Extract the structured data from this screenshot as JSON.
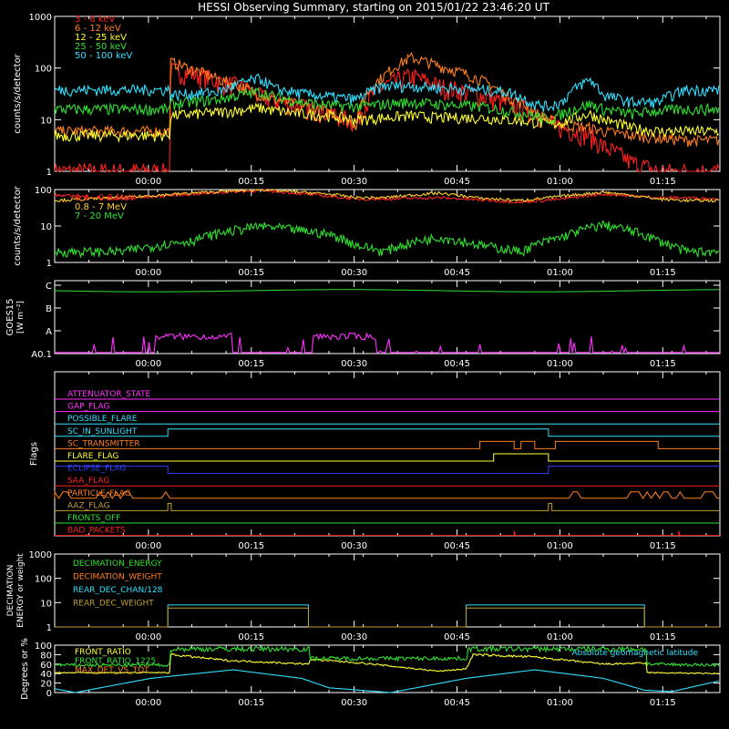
{
  "title": "HESSI Observing Summary, starting on 2015/01/22 23:46:20 UT",
  "time_ticks": [
    "00:00",
    "00:15",
    "00:30",
    "00:45",
    "01:00",
    "01:15"
  ],
  "panel1": {
    "ylabel": "counts/s/detector",
    "yticks": [
      "1",
      "10",
      "100",
      "1000"
    ],
    "legend": [
      {
        "label": "3 - 6 keV",
        "color": "#ff2020"
      },
      {
        "label": "6 - 12 keV",
        "color": "#ff7f20"
      },
      {
        "label": "12 - 25 keV",
        "color": "#ffff30"
      },
      {
        "label": "25 - 50 keV",
        "color": "#30e030"
      },
      {
        "label": "50 - 100 keV",
        "color": "#30e0ff"
      }
    ]
  },
  "panel2": {
    "ylabel": "counts/s/detector",
    "yticks": [
      "1",
      "10",
      "100"
    ],
    "legend": [
      {
        "label": "0.4 - 0.8 MeV",
        "color": "#ff2020"
      },
      {
        "label": "0.8 - 7 MeV",
        "color": "#ffd030"
      },
      {
        "label": "7 - 20 MeV",
        "color": "#30e030"
      }
    ]
  },
  "panel3": {
    "ylabel": "GOES15",
    "ylabel2": "[W m⁻²]",
    "yticks": [
      "A0.1",
      "A",
      "B",
      "C"
    ],
    "colors": {
      "short": "#30e030",
      "long": "#ff30ff"
    }
  },
  "panel4": {
    "ylabel": "Flags",
    "flags": [
      {
        "label": "ATTENUATOR_STATE",
        "color": "#ff30ff"
      },
      {
        "label": "GAP_FLAG",
        "color": "#ff30ff"
      },
      {
        "label": "POSSIBLE_FLARE",
        "color": "#30e0ff"
      },
      {
        "label": "SC_IN_SUNLIGHT",
        "color": "#30e0ff"
      },
      {
        "label": "SC_TRANSMITTER",
        "color": "#ff7f20"
      },
      {
        "label": "FLARE_FLAG",
        "color": "#ffff30"
      },
      {
        "label": "ECLIPSE_FLAG",
        "color": "#3040ff"
      },
      {
        "label": "SAA_FLAG",
        "color": "#ff2020"
      },
      {
        "label": "PARTICLE_FLAG",
        "color": "#ff7f20"
      },
      {
        "label": "AAZ_FLAG",
        "color": "#c0a030"
      },
      {
        "label": "FRONTS_OFF",
        "color": "#30e030"
      },
      {
        "label": "BAD_PACKETS",
        "color": "#ff2020"
      }
    ]
  },
  "panel5": {
    "ylabel": "DECIMATION",
    "ylabel2": "ENERGY or weight",
    "yticks": [
      "1",
      "10",
      "100",
      "1000"
    ],
    "legend": [
      {
        "label": "DECIMATION_ENERGY",
        "color": "#30e030"
      },
      {
        "label": "DECIMATION_WEIGHT",
        "color": "#ff7f20"
      },
      {
        "label": "REAR_DEC_CHAN/128",
        "color": "#30e0ff"
      },
      {
        "label": "REAR_DEC_WEIGHT",
        "color": "#c0a030"
      }
    ]
  },
  "panel6": {
    "ylabel": "Degrees or %",
    "yticks": [
      "0",
      "20",
      "40",
      "60",
      "80",
      "100"
    ],
    "legend": [
      {
        "label": "FRONT_RATIO",
        "color": "#ffff30"
      },
      {
        "label": "FRONT_RATIO_1225",
        "color": "#30e030"
      },
      {
        "label": "MAX_DET_VS_TOT",
        "color": "#ff7f20"
      }
    ],
    "note": "Absolute geomagnetic latitude",
    "note_color": "#30e0ff"
  },
  "chart_data": {
    "type": "line",
    "x_unit": "minutes from 2015/01/22 23:46:20 UT",
    "xlim": [
      0,
      97
    ],
    "panels": [
      {
        "ylabel": "counts/s/detector",
        "yscale": "log",
        "ylim": [
          1,
          1000
        ],
        "series": [
          {
            "name": "3 - 6 keV",
            "color": "#ff2020",
            "x": [
              0,
              16.5,
              17,
              20,
              24,
              28,
              30,
              32,
              36,
              40,
              44,
              48,
              52,
              56,
              62,
              66,
              70,
              72,
              74,
              78,
              80,
              84,
              88,
              92,
              97
            ],
            "y": [
              1,
              1,
              90,
              80,
              55,
              40,
              28,
              24,
              18,
              14,
              9,
              45,
              70,
              45,
              30,
              20,
              14,
              9,
              7,
              5,
              3,
              1.5,
              1,
              1,
              1
            ]
          },
          {
            "name": "6 - 12 keV",
            "color": "#ff7f20",
            "x": [
              0,
              16.5,
              17,
              20,
              24,
              28,
              30,
              32,
              36,
              40,
              44,
              48,
              52,
              56,
              62,
              66,
              70,
              72,
              74,
              78,
              80,
              84,
              88,
              92,
              97
            ],
            "y": [
              6,
              6,
              130,
              95,
              60,
              40,
              30,
              25,
              19,
              14,
              8,
              70,
              160,
              110,
              60,
              28,
              14,
              10,
              8,
              7,
              6,
              5,
              4.5,
              4,
              4
            ]
          },
          {
            "name": "12 - 25 keV",
            "color": "#ffff30",
            "x": [
              0,
              16.5,
              17,
              20,
              24,
              28,
              30,
              32,
              36,
              40,
              44,
              48,
              52,
              56,
              62,
              66,
              70,
              72,
              74,
              78,
              80,
              84,
              88,
              92,
              97
            ],
            "y": [
              5,
              5,
              12,
              13,
              14,
              16,
              17,
              15,
              13,
              12,
              10,
              11,
              12,
              11,
              11,
              10,
              9,
              8,
              9,
              13,
              10,
              7,
              6,
              6,
              6
            ]
          },
          {
            "name": "25 - 50 keV",
            "color": "#30e030",
            "x": [
              0,
              16.5,
              17,
              20,
              24,
              28,
              30,
              32,
              36,
              40,
              44,
              48,
              52,
              56,
              62,
              66,
              70,
              72,
              74,
              78,
              80,
              84,
              88,
              92,
              97
            ],
            "y": [
              16,
              16,
              20,
              22,
              25,
              32,
              35,
              28,
              22,
              19,
              18,
              20,
              22,
              20,
              18,
              15,
              12,
              10,
              13,
              20,
              16,
              13,
              15,
              16,
              16
            ]
          },
          {
            "name": "50 - 100 keV",
            "color": "#30e0ff",
            "x": [
              0,
              16.5,
              17,
              20,
              24,
              28,
              30,
              32,
              36,
              40,
              44,
              48,
              52,
              56,
              62,
              66,
              70,
              72,
              74,
              78,
              80,
              84,
              88,
              92,
              97
            ],
            "y": [
              38,
              38,
              30,
              32,
              35,
              55,
              62,
              40,
              32,
              28,
              25,
              45,
              45,
              42,
              38,
              35,
              20,
              18,
              22,
              60,
              30,
              22,
              22,
              38,
              38
            ]
          }
        ]
      },
      {
        "ylabel": "counts/s/detector",
        "yscale": "log",
        "ylim": [
          1,
          100
        ],
        "series": [
          {
            "name": "0.4 - 0.8 MeV",
            "color": "#ff2020",
            "x": [
              0,
              10,
              20,
              30,
              40,
              44,
              48,
              56,
              62,
              68,
              74,
              80,
              88,
              92,
              97
            ],
            "y": [
              70,
              55,
              75,
              95,
              65,
              55,
              55,
              60,
              52,
              45,
              55,
              75,
              60,
              60,
              55
            ]
          },
          {
            "name": "0.8 - 7 MeV",
            "color": "#ffd030",
            "x": [
              0,
              10,
              20,
              30,
              40,
              44,
              48,
              56,
              62,
              68,
              74,
              80,
              88,
              92,
              97
            ],
            "y": [
              50,
              60,
              80,
              100,
              75,
              60,
              60,
              80,
              58,
              50,
              65,
              85,
              55,
              50,
              50
            ]
          },
          {
            "name": "7 - 20 MeV",
            "color": "#30e030",
            "x": [
              0,
              10,
              20,
              30,
              40,
              44,
              48,
              56,
              62,
              68,
              74,
              80,
              88,
              92,
              97
            ],
            "y": [
              2,
              2,
              4,
              10,
              6,
              3,
              2,
              5,
              3,
              2,
              5,
              11,
              4,
              2,
              2
            ]
          }
        ]
      },
      {
        "ylabel": "GOES15 [W m⁻²]",
        "yscale": "log",
        "ylim": [
          "A0.1",
          "C"
        ],
        "series": [
          {
            "name": "GOES short",
            "color": "#30e030",
            "x": [
              0,
              20,
              40,
              60,
              80,
              97
            ],
            "y": [
              "C",
              "C",
              "C",
              "C",
              "C",
              "C"
            ]
          },
          {
            "name": "GOES long",
            "color": "#ff30ff",
            "x": [
              0,
              14,
              16,
              22,
              26,
              30,
              34,
              38,
              40,
              44,
              48,
              52,
              56,
              60,
              64,
              70,
              80,
              97
            ],
            "y": [
              "A0.1",
              "A0.1",
              "A",
              "A",
              "A",
              "A",
              "A",
              "A",
              "A0.1",
              "A",
              "A",
              "A",
              "A",
              "A0.1",
              "A0.1",
              "A0.1",
              "A0.1",
              "A0.1"
            ]
          }
        ]
      },
      {
        "ylabel": "Flags",
        "type": "step",
        "series": [
          {
            "name": "SC_IN_SUNLIGHT",
            "x": [
              0,
              16.5,
              72,
              97
            ],
            "y": [
              0,
              1,
              0,
              0
            ]
          },
          {
            "name": "SC_TRANSMITTER",
            "x": [
              0,
              62,
              67,
              68,
              70,
              73,
              74,
              88,
              97
            ],
            "y": [
              0,
              1,
              0,
              1,
              0,
              1,
              1,
              0,
              0
            ]
          },
          {
            "name": "FLARE_FLAG",
            "x": [
              0,
              64,
              70,
              72,
              97
            ],
            "y": [
              0,
              1,
              1,
              0,
              0
            ]
          },
          {
            "name": "ECLIPSE_FLAG",
            "x": [
              0,
              16.5,
              72,
              97
            ],
            "y": [
              1,
              0,
              1,
              1
            ]
          },
          {
            "name": "AAZ_FLAG",
            "x": [
              0,
              16.5,
              17,
              72,
              72.5,
              97
            ],
            "y": [
              0,
              1,
              0,
              1,
              0,
              0
            ]
          }
        ]
      },
      {
        "ylabel": "DECIMATION ENERGY or weight",
        "yscale": "log",
        "ylim": [
          1,
          1000
        ],
        "series": [
          {
            "name": "REAR_DEC_CHAN/128",
            "color": "#30e0ff",
            "x": [
              0,
              16.5,
              37,
              60,
              86,
              97
            ],
            "y": [
              1,
              8,
              1,
              8,
              1,
              1
            ]
          },
          {
            "name": "REAR_DEC_WEIGHT",
            "color": "#c0a030",
            "x": [
              0,
              16.5,
              37,
              60,
              86,
              97
            ],
            "y": [
              1,
              6,
              1,
              6,
              1,
              1
            ]
          }
        ]
      },
      {
        "ylabel": "Degrees or %",
        "ylim": [
          0,
          100
        ],
        "series": [
          {
            "name": "FRONT_RATIO",
            "color": "#ffff30",
            "x": [
              0,
              16.5,
              17,
              25,
              37,
              37.5,
              45,
              56,
              60,
              61,
              70,
              80,
              86,
              86.5,
              97
            ],
            "y": [
              42,
              42,
              80,
              68,
              60,
              70,
              62,
              45,
              50,
              80,
              75,
              60,
              62,
              42,
              40
            ]
          },
          {
            "name": "FRONT_RATIO_1225",
            "color": "#30e030",
            "x": [
              0,
              16.5,
              17,
              37,
              37.5,
              60,
              60.5,
              86,
              86.5,
              97
            ],
            "y": [
              58,
              58,
              92,
              92,
              72,
              72,
              92,
              92,
              60,
              58
            ]
          },
          {
            "name": "Absolute geomagnetic latitude",
            "color": "#30e0ff",
            "x": [
              0,
              3,
              14,
              26,
              36,
              40,
              49,
              60,
              70,
              80,
              86,
              90,
              97
            ],
            "y": [
              8,
              0,
              30,
              48,
              30,
              10,
              0,
              30,
              48,
              30,
              5,
              2,
              25
            ]
          }
        ]
      }
    ]
  }
}
